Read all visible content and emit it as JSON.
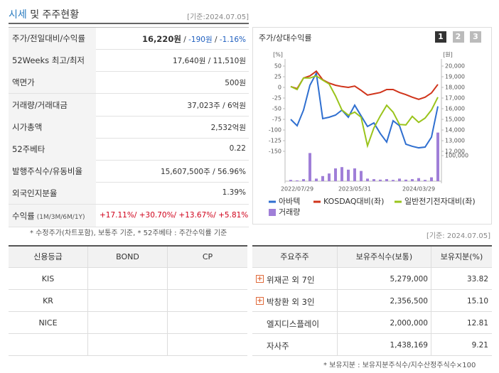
{
  "header": {
    "title_highlight": "시세",
    "title_rest": "및 주주현황",
    "date": "[기준:2024.07.05]"
  },
  "quote_table": {
    "rows": [
      {
        "label": "주가/전일대비/수익률",
        "parts": [
          {
            "text": "16,220원",
            "bold": true
          },
          {
            "text": " / "
          },
          {
            "text": "-190원",
            "color": "#1f5fbf"
          },
          {
            "text": " / "
          },
          {
            "text": "-1.16%",
            "color": "#1f5fbf"
          }
        ]
      },
      {
        "label": "52Weeks 최고/최저",
        "parts": [
          {
            "text": "17,640원 / 11,510원"
          }
        ]
      },
      {
        "label": "액면가",
        "parts": [
          {
            "text": "500원"
          }
        ]
      },
      {
        "label": "거래량/거래대금",
        "parts": [
          {
            "text": "37,023주 / 6억원"
          }
        ]
      },
      {
        "label": "시가총액",
        "parts": [
          {
            "text": "2,532억원"
          }
        ]
      },
      {
        "label": "52주베타",
        "parts": [
          {
            "text": "0.22"
          }
        ]
      },
      {
        "label": "발행주식수/유동비율",
        "parts": [
          {
            "text": "15,607,500주 / 56.96%"
          }
        ]
      },
      {
        "label": "외국인지분율",
        "parts": [
          {
            "text": "1.39%"
          }
        ]
      },
      {
        "label": "수익률",
        "label_note": "(1M/3M/6M/1Y)",
        "parts": [
          {
            "text": "+17.11%/ +30.70%/ +13.67%/ +5.81%",
            "color": "#d0021b"
          }
        ]
      }
    ],
    "footnote": "* 수정주가(차트포함), 보통주 기준, * 52주베타 : 주간수익률 기준"
  },
  "chart_panel": {
    "title": "주가/상대수익률",
    "tabs": [
      "1",
      "2",
      "3"
    ]
  },
  "chart_data": {
    "type": "line",
    "y_label": "[%]",
    "y2_label": "[원]",
    "categories": [
      null,
      "2022/07/29",
      null,
      null,
      null,
      null,
      null,
      null,
      null,
      null,
      "2023/05/31",
      null,
      null,
      null,
      null,
      null,
      null,
      null,
      null,
      null,
      "2024/03/29",
      null,
      null,
      null
    ],
    "ylim": [
      -150,
      50
    ],
    "yticks": [
      50,
      25,
      0,
      -25,
      -50,
      -75,
      -100,
      -125,
      -150
    ],
    "y2lim": [
      12000,
      20000
    ],
    "y2ticks": [
      {
        "value": 20000,
        "label": "20,000"
      },
      {
        "value": 19000,
        "label": "19,000"
      },
      {
        "value": 18000,
        "label": "18,000"
      },
      {
        "value": 17000,
        "label": "17,000"
      },
      {
        "value": 16000,
        "label": "16,000"
      },
      {
        "value": 15000,
        "label": "15,000"
      },
      {
        "value": 14000,
        "label": "14,000"
      },
      {
        "value": 13000,
        "label": "13,000"
      },
      {
        "value": 12000,
        "label": "12,000"
      }
    ],
    "y3lim": [
      0,
      200000
    ],
    "y3ticks": [
      {
        "value": 100000,
        "label": "100,000"
      }
    ],
    "series": [
      {
        "name": "아바텍",
        "color": "#2f6fd0",
        "axis": "y2",
        "values": [
          15000,
          14400,
          15870,
          18200,
          19330,
          15070,
          15200,
          15400,
          15870,
          15200,
          16330,
          15330,
          14330,
          14670,
          13670,
          12870,
          14870,
          14400,
          12670,
          12470,
          12330,
          12400,
          13330,
          16220
        ]
      },
      {
        "name": "KOSDAQ대비(좌)",
        "color": "#d0341b",
        "values": [
          2,
          -3,
          22,
          27,
          38,
          18,
          10,
          5,
          2,
          0,
          3,
          -7,
          -18,
          -15,
          -12,
          -5,
          -5,
          -12,
          -17,
          -23,
          -28,
          -23,
          -13,
          7
        ]
      },
      {
        "name": "일반전기전자대비(좌)",
        "color": "#9ac41c",
        "values": [
          2,
          -5,
          22,
          22,
          27,
          17,
          8,
          -20,
          -53,
          -65,
          -58,
          -70,
          -137,
          -95,
          -67,
          -42,
          -58,
          -87,
          -88,
          -68,
          -82,
          -72,
          -53,
          -23
        ]
      },
      {
        "name": "거래량",
        "color": "#a07fd8",
        "type": "bar",
        "axis": "y3",
        "values": [
          5000,
          3000,
          8000,
          110000,
          10000,
          20000,
          30000,
          50000,
          55000,
          45000,
          50000,
          40000,
          10000,
          8000,
          6000,
          8000,
          5000,
          10000,
          6000,
          8000,
          12000,
          5000,
          15000,
          190000
        ]
      }
    ]
  },
  "credit_table": {
    "headers": [
      "신용등급",
      "BOND",
      "CP"
    ],
    "agencies": [
      "KIS",
      "KR",
      "NICE"
    ]
  },
  "holders_table": {
    "date": "[기준: 2024.07.05]",
    "headers": [
      "주요주주",
      "보유주식수(보통)",
      "보유지분(%)"
    ],
    "rows": [
      {
        "name": "위재곤 외 7인",
        "shares": "5,279,000",
        "pct": "33.82",
        "expandable": true
      },
      {
        "name": "박창환 외 3인",
        "shares": "2,356,500",
        "pct": "15.10",
        "expandable": true
      },
      {
        "name": "엘지디스플레이",
        "shares": "2,000,000",
        "pct": "12.81"
      },
      {
        "name": "자사주",
        "shares": "1,438,169",
        "pct": "9.21"
      }
    ],
    "footnote": "* 보유지분 : 보유지분주식수/지수산정주식수×100"
  }
}
